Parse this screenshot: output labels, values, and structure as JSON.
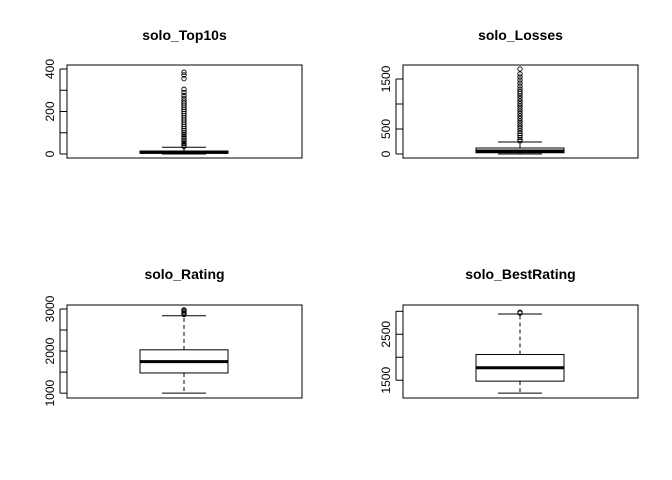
{
  "chart_data": [
    {
      "type": "boxplot",
      "title": "solo_Top10s",
      "ylim": [
        0,
        400
      ],
      "yticks": [
        0,
        100,
        200,
        300,
        400
      ],
      "ytick_labels": [
        "0",
        "",
        "200",
        "",
        "400"
      ],
      "box": {
        "whisker_low": 0,
        "q1": 3,
        "median": 8,
        "q3": 14,
        "whisker_high": 32
      },
      "outliers": [
        36,
        42,
        50,
        58,
        66,
        75,
        84,
        92,
        100,
        110,
        120,
        130,
        140,
        150,
        160,
        170,
        180,
        190,
        200,
        210,
        220,
        230,
        240,
        250,
        262,
        275,
        290,
        305,
        355,
        372,
        385
      ]
    },
    {
      "type": "boxplot",
      "title": "solo_Losses",
      "ylim": [
        0,
        1700
      ],
      "yticks": [
        0,
        500,
        1000,
        1500
      ],
      "ytick_labels": [
        "0",
        "500",
        "",
        "1500"
      ],
      "box": {
        "whisker_low": 0,
        "q1": 25,
        "median": 60,
        "q3": 120,
        "whisker_high": 240
      },
      "outliers": [
        260,
        290,
        330,
        370,
        410,
        460,
        510,
        560,
        610,
        660,
        710,
        760,
        810,
        860,
        910,
        960,
        1010,
        1060,
        1110,
        1160,
        1210,
        1250,
        1300,
        1360,
        1420,
        1480,
        1540,
        1600,
        1700
      ]
    },
    {
      "type": "boxplot",
      "title": "solo_Rating",
      "ylim": [
        980,
        3000
      ],
      "yticks": [
        1000,
        1500,
        2000,
        2500,
        3000
      ],
      "ytick_labels": [
        "1000",
        "",
        "2000",
        "",
        "3000"
      ],
      "box": {
        "whisker_low": 1000,
        "q1": 1480,
        "median": 1750,
        "q3": 2030,
        "whisker_high": 2840
      },
      "outliers": [
        2870,
        2900,
        2930,
        2960,
        2980
      ]
    },
    {
      "type": "boxplot",
      "title": "solo_BestRating",
      "ylim": [
        1200,
        3050
      ],
      "yticks": [
        1500,
        2000,
        2500,
        3000
      ],
      "ytick_labels": [
        "1500",
        "",
        "2500",
        ""
      ],
      "box": {
        "whisker_low": 1220,
        "q1": 1480,
        "median": 1770,
        "q3": 2060,
        "whisker_high": 2940
      },
      "outliers": [
        2960,
        2980
      ]
    }
  ]
}
